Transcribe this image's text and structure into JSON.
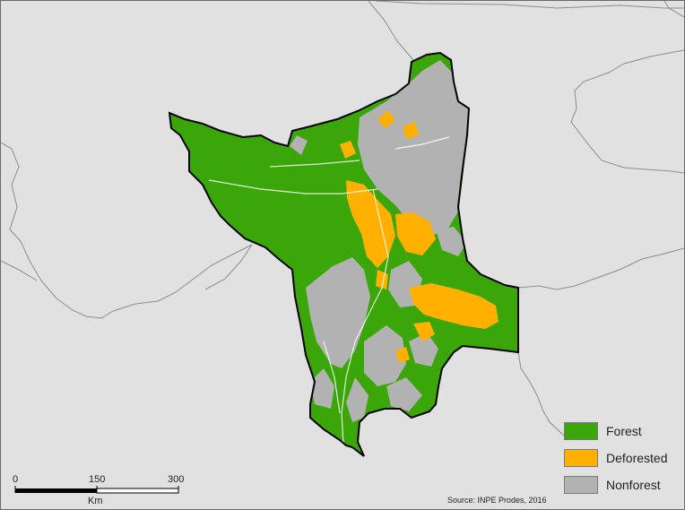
{
  "colors": {
    "forest": "#3aa60a",
    "deforested": "#ffb000",
    "nonforest": "#b2b2b2",
    "background": "#e1e1e1",
    "borders": "#8c8c8c"
  },
  "legend": {
    "items": [
      {
        "label": "Forest",
        "color": "#3aa60a"
      },
      {
        "label": "Deforested",
        "color": "#ffb000"
      },
      {
        "label": "Nonforest",
        "color": "#b2b2b2"
      }
    ]
  },
  "scale_bar": {
    "ticks": [
      "0",
      "150",
      "300"
    ],
    "unit": "Km"
  },
  "source": "Source: INPE Prodes, 2016"
}
